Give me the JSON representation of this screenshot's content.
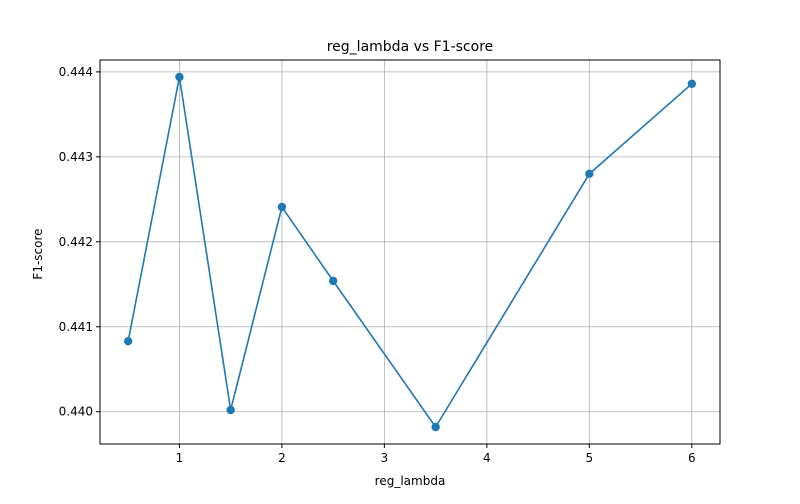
{
  "chart_data": {
    "type": "line",
    "title": "reg_lambda vs F1-score",
    "xlabel": "reg_lambda",
    "ylabel": "F1-score",
    "x": [
      0.5,
      1,
      1.5,
      2,
      2.5,
      3.5,
      5,
      6
    ],
    "series": [
      {
        "values": [
          0.44083,
          0.44394,
          0.44002,
          0.44241,
          0.44154,
          0.43982,
          0.4428,
          0.44386
        ]
      }
    ],
    "xlim": [
      0.225,
      6.275
    ],
    "ylim": [
      0.43962,
      0.44414
    ],
    "xticks": [
      1,
      2,
      3,
      4,
      5,
      6
    ],
    "xtick_labels": [
      "1",
      "2",
      "3",
      "4",
      "5",
      "6"
    ],
    "yticks": [
      0.44,
      0.441,
      0.442,
      0.443,
      0.444
    ],
    "ytick_labels": [
      "0.440",
      "0.441",
      "0.442",
      "0.443",
      "0.444"
    ],
    "grid": true,
    "markers": true,
    "colors": {
      "series": "#1f77b4",
      "grid": "#b0b0b0",
      "axis": "#000000"
    }
  }
}
